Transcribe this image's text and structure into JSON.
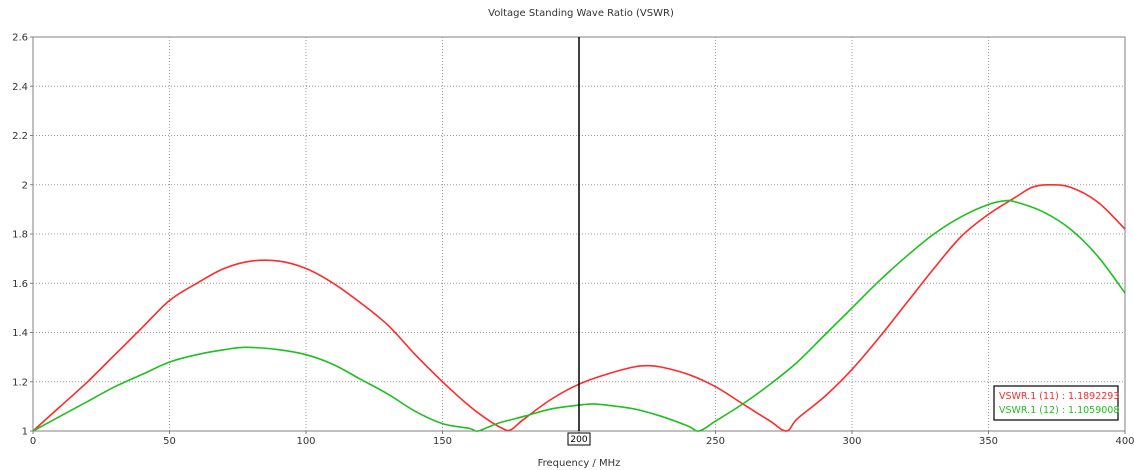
{
  "chart_data": {
    "type": "line",
    "title": "Voltage Standing Wave Ratio (VSWR)",
    "xlabel": "Frequency / MHz",
    "ylabel": "",
    "xlim": [
      0,
      400
    ],
    "ylim": [
      1,
      2.6
    ],
    "grid": true,
    "x_ticks": [
      "0",
      "50",
      "100",
      "150",
      "200",
      "250",
      "300",
      "350",
      "400"
    ],
    "y_ticks": [
      "1",
      "1.2",
      "1.4",
      "1.6",
      "1.8",
      "2",
      "2.2",
      "2.4",
      "2.6"
    ],
    "marker": {
      "x": 200,
      "label": "200"
    },
    "legend_position": "bottom-right",
    "legend": [
      {
        "text": "VSWR.1 (11) : 1.1892293",
        "color": "#ff2a2a"
      },
      {
        "text": "VSWR.1 (12) : 1.1059008",
        "color": "#1fbf1f"
      }
    ],
    "series": [
      {
        "color": "#ff2a2a",
        "x": [
          0,
          10,
          20,
          30,
          40,
          50,
          60,
          70,
          80,
          90,
          100,
          110,
          120,
          130,
          140,
          150,
          160,
          166,
          172,
          175,
          180,
          190,
          200,
          210,
          220,
          225,
          230,
          240,
          250,
          260,
          270,
          276,
          280,
          290,
          300,
          310,
          320,
          330,
          340,
          350,
          360,
          366,
          372,
          380,
          390,
          400
        ],
        "y": [
          1.0,
          1.1,
          1.2,
          1.31,
          1.42,
          1.53,
          1.6,
          1.66,
          1.69,
          1.69,
          1.66,
          1.6,
          1.52,
          1.43,
          1.31,
          1.2,
          1.1,
          1.05,
          1.01,
          1.005,
          1.05,
          1.13,
          1.19,
          1.23,
          1.26,
          1.265,
          1.26,
          1.23,
          1.18,
          1.11,
          1.04,
          1.0,
          1.05,
          1.14,
          1.25,
          1.38,
          1.52,
          1.66,
          1.79,
          1.88,
          1.95,
          1.99,
          2.0,
          1.99,
          1.93,
          1.82
        ]
      },
      {
        "color": "#1fbf1f",
        "x": [
          0,
          10,
          20,
          30,
          40,
          50,
          60,
          70,
          78,
          90,
          100,
          110,
          120,
          130,
          140,
          150,
          160,
          163,
          170,
          180,
          190,
          200,
          205,
          210,
          220,
          230,
          240,
          244,
          250,
          260,
          270,
          280,
          290,
          300,
          310,
          320,
          330,
          340,
          350,
          356,
          360,
          370,
          380,
          390,
          400
        ],
        "y": [
          1.0,
          1.06,
          1.12,
          1.18,
          1.23,
          1.28,
          1.31,
          1.33,
          1.34,
          1.33,
          1.31,
          1.27,
          1.21,
          1.15,
          1.08,
          1.03,
          1.01,
          1.0,
          1.03,
          1.06,
          1.09,
          1.105,
          1.11,
          1.105,
          1.09,
          1.06,
          1.02,
          1.0,
          1.04,
          1.11,
          1.19,
          1.28,
          1.39,
          1.5,
          1.61,
          1.71,
          1.8,
          1.87,
          1.92,
          1.935,
          1.93,
          1.89,
          1.82,
          1.71,
          1.56
        ]
      }
    ]
  }
}
